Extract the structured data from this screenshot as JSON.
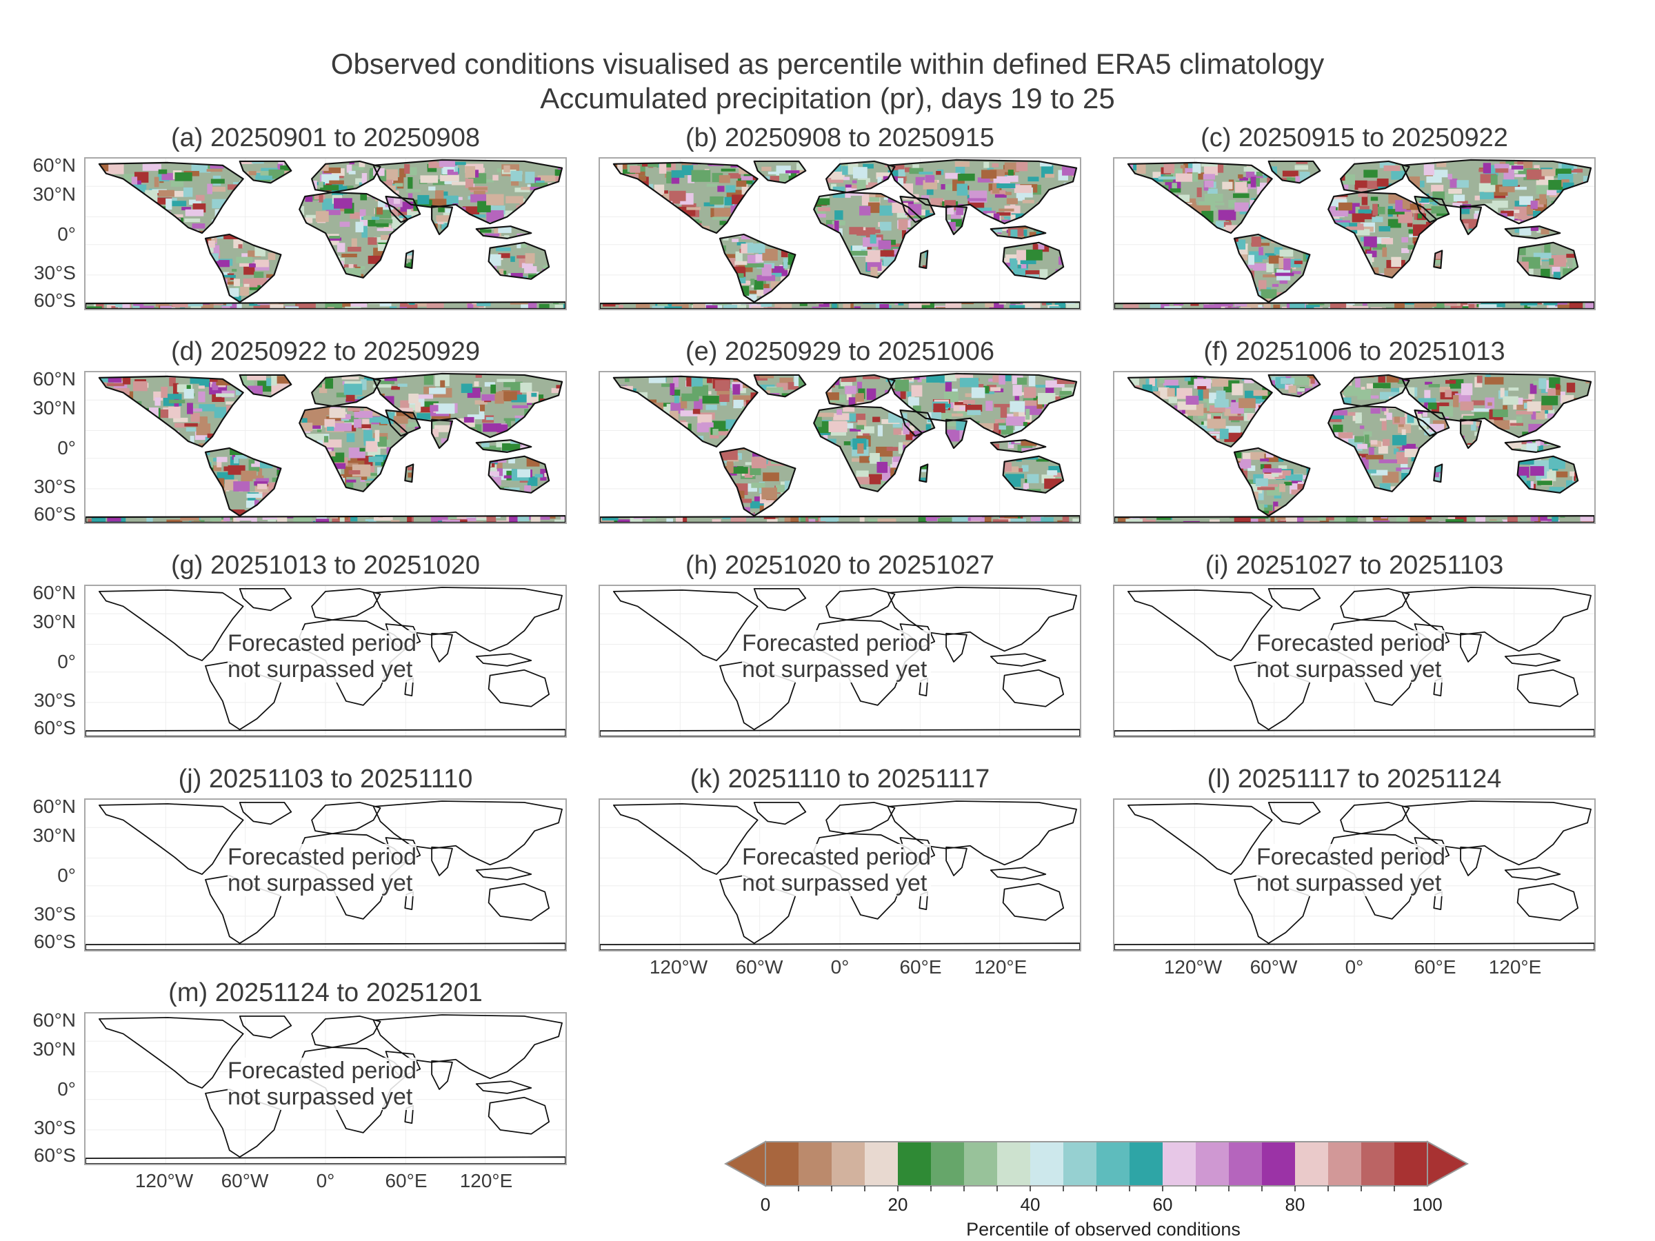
{
  "figure": {
    "title_line1": "Observed conditions visualised as percentile within defined ERA5 climatology",
    "title_line2": "Accumulated precipitation (pr), days 19 to 25"
  },
  "panels": [
    {
      "title": "(a) 20250901 to 20250908",
      "observed": true
    },
    {
      "title": "(b) 20250908 to 20250915",
      "observed": true
    },
    {
      "title": "(c) 20250915 to 20250922",
      "observed": true
    },
    {
      "title": "(d) 20250922 to 20250929",
      "observed": true
    },
    {
      "title": "(e) 20250929 to 20251006",
      "observed": true
    },
    {
      "title": "(f) 20251006 to 20251013",
      "observed": true
    },
    {
      "title": "(g) 20251013 to 20251020",
      "observed": false
    },
    {
      "title": "(h) 20251020 to 20251027",
      "observed": false
    },
    {
      "title": "(i) 20251027 to 20251103",
      "observed": false
    },
    {
      "title": "(j) 20251103 to 20251110",
      "observed": false
    },
    {
      "title": "(k) 20251110 to 20251117",
      "observed": false
    },
    {
      "title": "(l) 20251117 to 20251124",
      "observed": false
    },
    {
      "title": "(m) 20251124 to 20251201",
      "observed": false
    }
  ],
  "no_data_text": {
    "line1": "Forecasted period",
    "line2": "not surpassed yet"
  },
  "lat_labels": [
    "60°N",
    "30°N",
    "0°",
    "30°S",
    "60°S"
  ],
  "lon_labels": [
    "120°W",
    "60°W",
    "0°",
    "60°E",
    "120°E"
  ],
  "colorbar": {
    "label": "Percentile of observed conditions",
    "ticks": [
      "0",
      "20",
      "40",
      "60",
      "80",
      "100"
    ],
    "colors": [
      "#a8663e",
      "#bb8a6c",
      "#d2b29e",
      "#e8d9d0",
      "#2f8a35",
      "#66a66a",
      "#98c29a",
      "#cde2cf",
      "#cde8ec",
      "#96d0d1",
      "#5ebcbd",
      "#2ea5a6",
      "#e7c7e7",
      "#cf98d2",
      "#b565bd",
      "#9b33a6",
      "#eacaca",
      "#d29898",
      "#bb6464",
      "#a83232"
    ],
    "under_color": "#a8663e",
    "over_color": "#a83232"
  }
}
